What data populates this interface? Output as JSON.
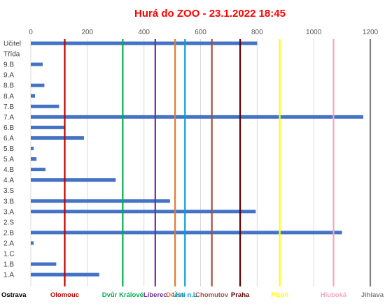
{
  "chart_data": {
    "type": "bar",
    "orientation": "horizontal",
    "title": "Hurá do ZOO - 23.1.2022 18:45",
    "title_color": "#ff0000",
    "bar_color": "#4472c4",
    "xlim": [
      0,
      1200
    ],
    "x_ticks": [
      "0",
      "200",
      "400",
      "600",
      "800",
      "1000",
      "1200"
    ],
    "categories": [
      "Učitel",
      "Třída",
      "9.B",
      "9.A",
      "8.B",
      "8.A",
      "7.B",
      "7.A",
      "6.B",
      "6.A",
      "5.B",
      "5.A",
      "4.B",
      "4.A",
      "3.S",
      "3.B",
      "3.A",
      "2.S",
      "2.B",
      "2.A",
      "1.C",
      "1.B",
      "1.A"
    ],
    "values": [
      800,
      0,
      42,
      0,
      48,
      15,
      100,
      1175,
      118,
      188,
      10,
      20,
      52,
      300,
      0,
      492,
      795,
      0,
      1100,
      10,
      0,
      90,
      242
    ],
    "zoos": [
      {
        "name": "Ostrava",
        "value": 0,
        "color": "#000000"
      },
      {
        "name": "Olomouc",
        "value": 120,
        "color": "#c00000"
      },
      {
        "name": "Dvůr Králové",
        "value": 325,
        "color": "#00b050"
      },
      {
        "name": "Liberec",
        "value": 440,
        "color": "#7030a0"
      },
      {
        "name": "Děčín",
        "value": 510,
        "color": "#e07b39"
      },
      {
        "name": "Ústí n.L",
        "value": 545,
        "color": "#00a0d0"
      },
      {
        "name": "Chomutov",
        "value": 640,
        "color": "#a05040"
      },
      {
        "name": "Praha",
        "value": 740,
        "color": "#600000"
      },
      {
        "name": "Plzeň",
        "value": 880,
        "color": "#ffff00"
      },
      {
        "name": "Hluboká",
        "value": 1070,
        "color": "#f4a6c0"
      },
      {
        "name": "Jihlava",
        "value": 1200,
        "color": "#808080"
      }
    ]
  }
}
